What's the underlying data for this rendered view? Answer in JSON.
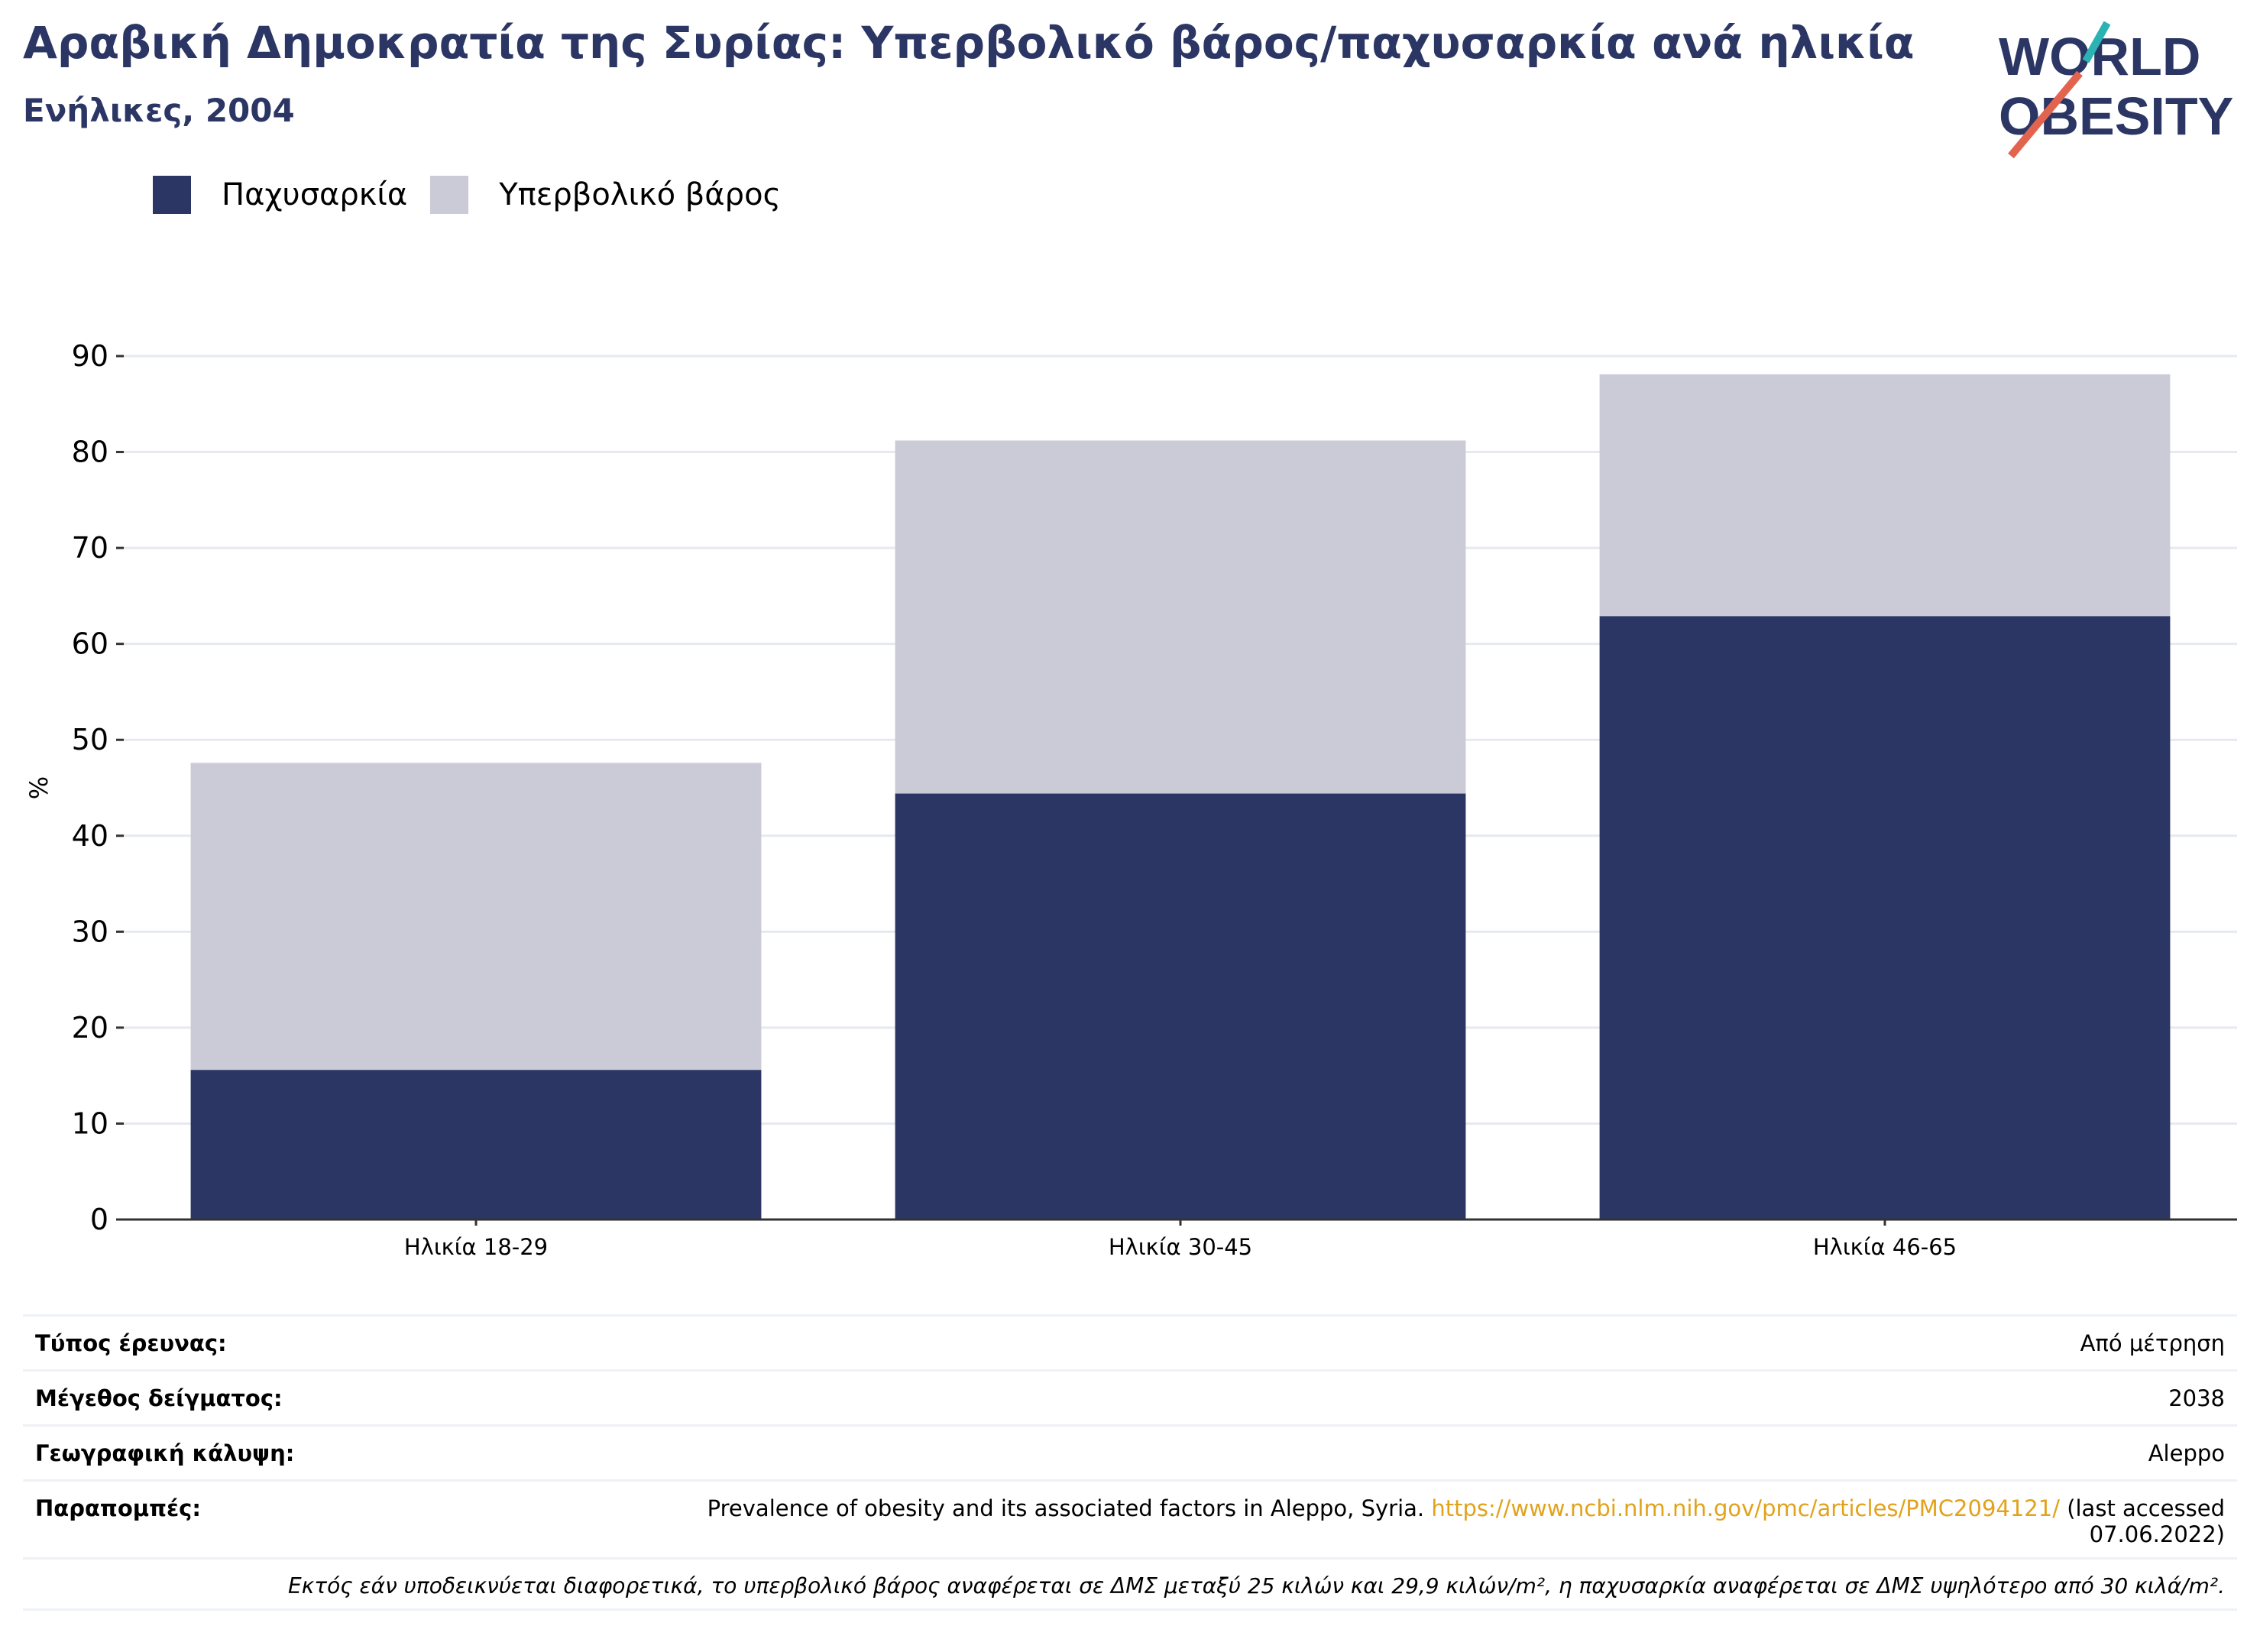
{
  "header": {
    "title": "Αραβική Δημοκρατία της Συρίας: Υπερβολικό βάρος/παχυσαρκία ανά ηλικία",
    "subtitle": "Ενήλικες, 2004"
  },
  "logo": {
    "line1": "WORLD",
    "line2": "OBESITY"
  },
  "colors": {
    "obesity": "#2b3664",
    "overweight": "#cacbd7",
    "accent_teal": "#2bb3b4",
    "accent_red": "#e2644f",
    "link": "#e2a21a"
  },
  "chart_data": {
    "type": "bar",
    "stacked": true,
    "categories": [
      "Ηλικία 18-29",
      "Ηλικία 30-45",
      "Ηλικία 46-65"
    ],
    "series": [
      {
        "name": "Παχυσαρκία",
        "values": [
          15.6,
          44.4,
          62.9
        ]
      },
      {
        "name": "Υπερβολικό βάρος",
        "values": [
          32.0,
          36.8,
          25.2
        ]
      }
    ],
    "yticks": [
      0,
      10,
      20,
      30,
      40,
      50,
      60,
      70,
      80,
      90
    ],
    "ylim": [
      0,
      90
    ],
    "ylabel": "%",
    "xlabel": "",
    "grid": true,
    "legend": "top-left"
  },
  "meta": {
    "survey_type_label": "Τύπος έρευνας:",
    "survey_type_value": "Από μέτρηση",
    "sample_size_label": "Μέγεθος δείγματος:",
    "sample_size_value": "2038",
    "coverage_label": "Γεωγραφική κάλυψη:",
    "coverage_value": "Aleppo",
    "references_label": "Παραπομπές:",
    "references_text": "Prevalence of obesity and its associated factors in Aleppo, Syria.",
    "references_url": "https://www.ncbi.nlm.nih.gov/pmc/articles/PMC2094121/",
    "references_suffix": "(last accessed",
    "references_date": "07.06.2022)",
    "footnote": "Εκτός εάν υποδεικνύεται διαφορετικά, το υπερβολικό βάρος αναφέρεται σε ΔΜΣ μεταξύ 25 κιλών και 29,9 κιλών/m², η παχυσαρκία αναφέρεται σε ΔΜΣ υψηλότερο από 30 κιλά/m²."
  }
}
